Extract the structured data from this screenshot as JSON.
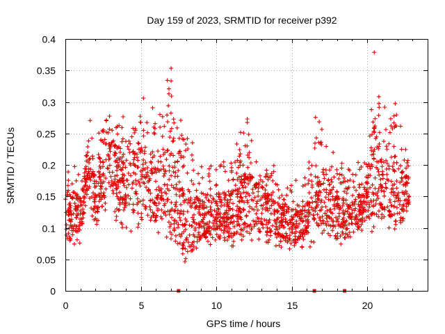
{
  "chart_data": {
    "type": "scatter",
    "title": "Day 159 of 2023, SRMTID for receiver p392",
    "xlabel": "GPS time / hours",
    "ylabel": "SRMTID / TECUs",
    "xlim": [
      0,
      24
    ],
    "ylim": [
      0,
      0.4
    ],
    "x_ticks": [
      0,
      5,
      10,
      15,
      20
    ],
    "x_tick_labels": [
      "0",
      "5",
      "10",
      "15",
      "20"
    ],
    "y_ticks": [
      0,
      0.05,
      0.1,
      0.15,
      0.2,
      0.25,
      0.3,
      0.35,
      0.4
    ],
    "y_tick_labels": [
      "0",
      "0.05",
      "0.1",
      "0.15",
      "0.2",
      "0.25",
      "0.3",
      "0.35",
      "0.4"
    ],
    "grid": true,
    "marker": "plus",
    "color": "#e00000",
    "x_range_hours": [
      0,
      22.8
    ],
    "envelope": {
      "hours": [
        0,
        1,
        1.5,
        2,
        3,
        4,
        5,
        6,
        7,
        8,
        9,
        10,
        11,
        12,
        13,
        14,
        15,
        16,
        16.5,
        17,
        18,
        19,
        20,
        20.5,
        21,
        22,
        22.8
      ],
      "typical_min": [
        0.08,
        0.07,
        0.14,
        0.1,
        0.12,
        0.09,
        0.1,
        0.08,
        0.08,
        0.05,
        0.07,
        0.07,
        0.07,
        0.08,
        0.07,
        0.07,
        0.06,
        0.07,
        0.06,
        0.08,
        0.07,
        0.08,
        0.1,
        0.09,
        0.1,
        0.09,
        0.1
      ],
      "typical_max": [
        0.2,
        0.17,
        0.25,
        0.24,
        0.29,
        0.25,
        0.28,
        0.27,
        0.34,
        0.24,
        0.2,
        0.2,
        0.22,
        0.26,
        0.21,
        0.18,
        0.16,
        0.17,
        0.27,
        0.28,
        0.2,
        0.18,
        0.21,
        0.38,
        0.27,
        0.3,
        0.2
      ],
      "median": [
        0.13,
        0.12,
        0.2,
        0.15,
        0.2,
        0.17,
        0.18,
        0.16,
        0.16,
        0.1,
        0.12,
        0.12,
        0.12,
        0.15,
        0.13,
        0.12,
        0.1,
        0.11,
        0.14,
        0.16,
        0.12,
        0.11,
        0.15,
        0.2,
        0.16,
        0.16,
        0.15
      ]
    },
    "points_approx_count": 2200,
    "markers_on_axis_hours": [
      7.5,
      16.5,
      18.5
    ]
  }
}
